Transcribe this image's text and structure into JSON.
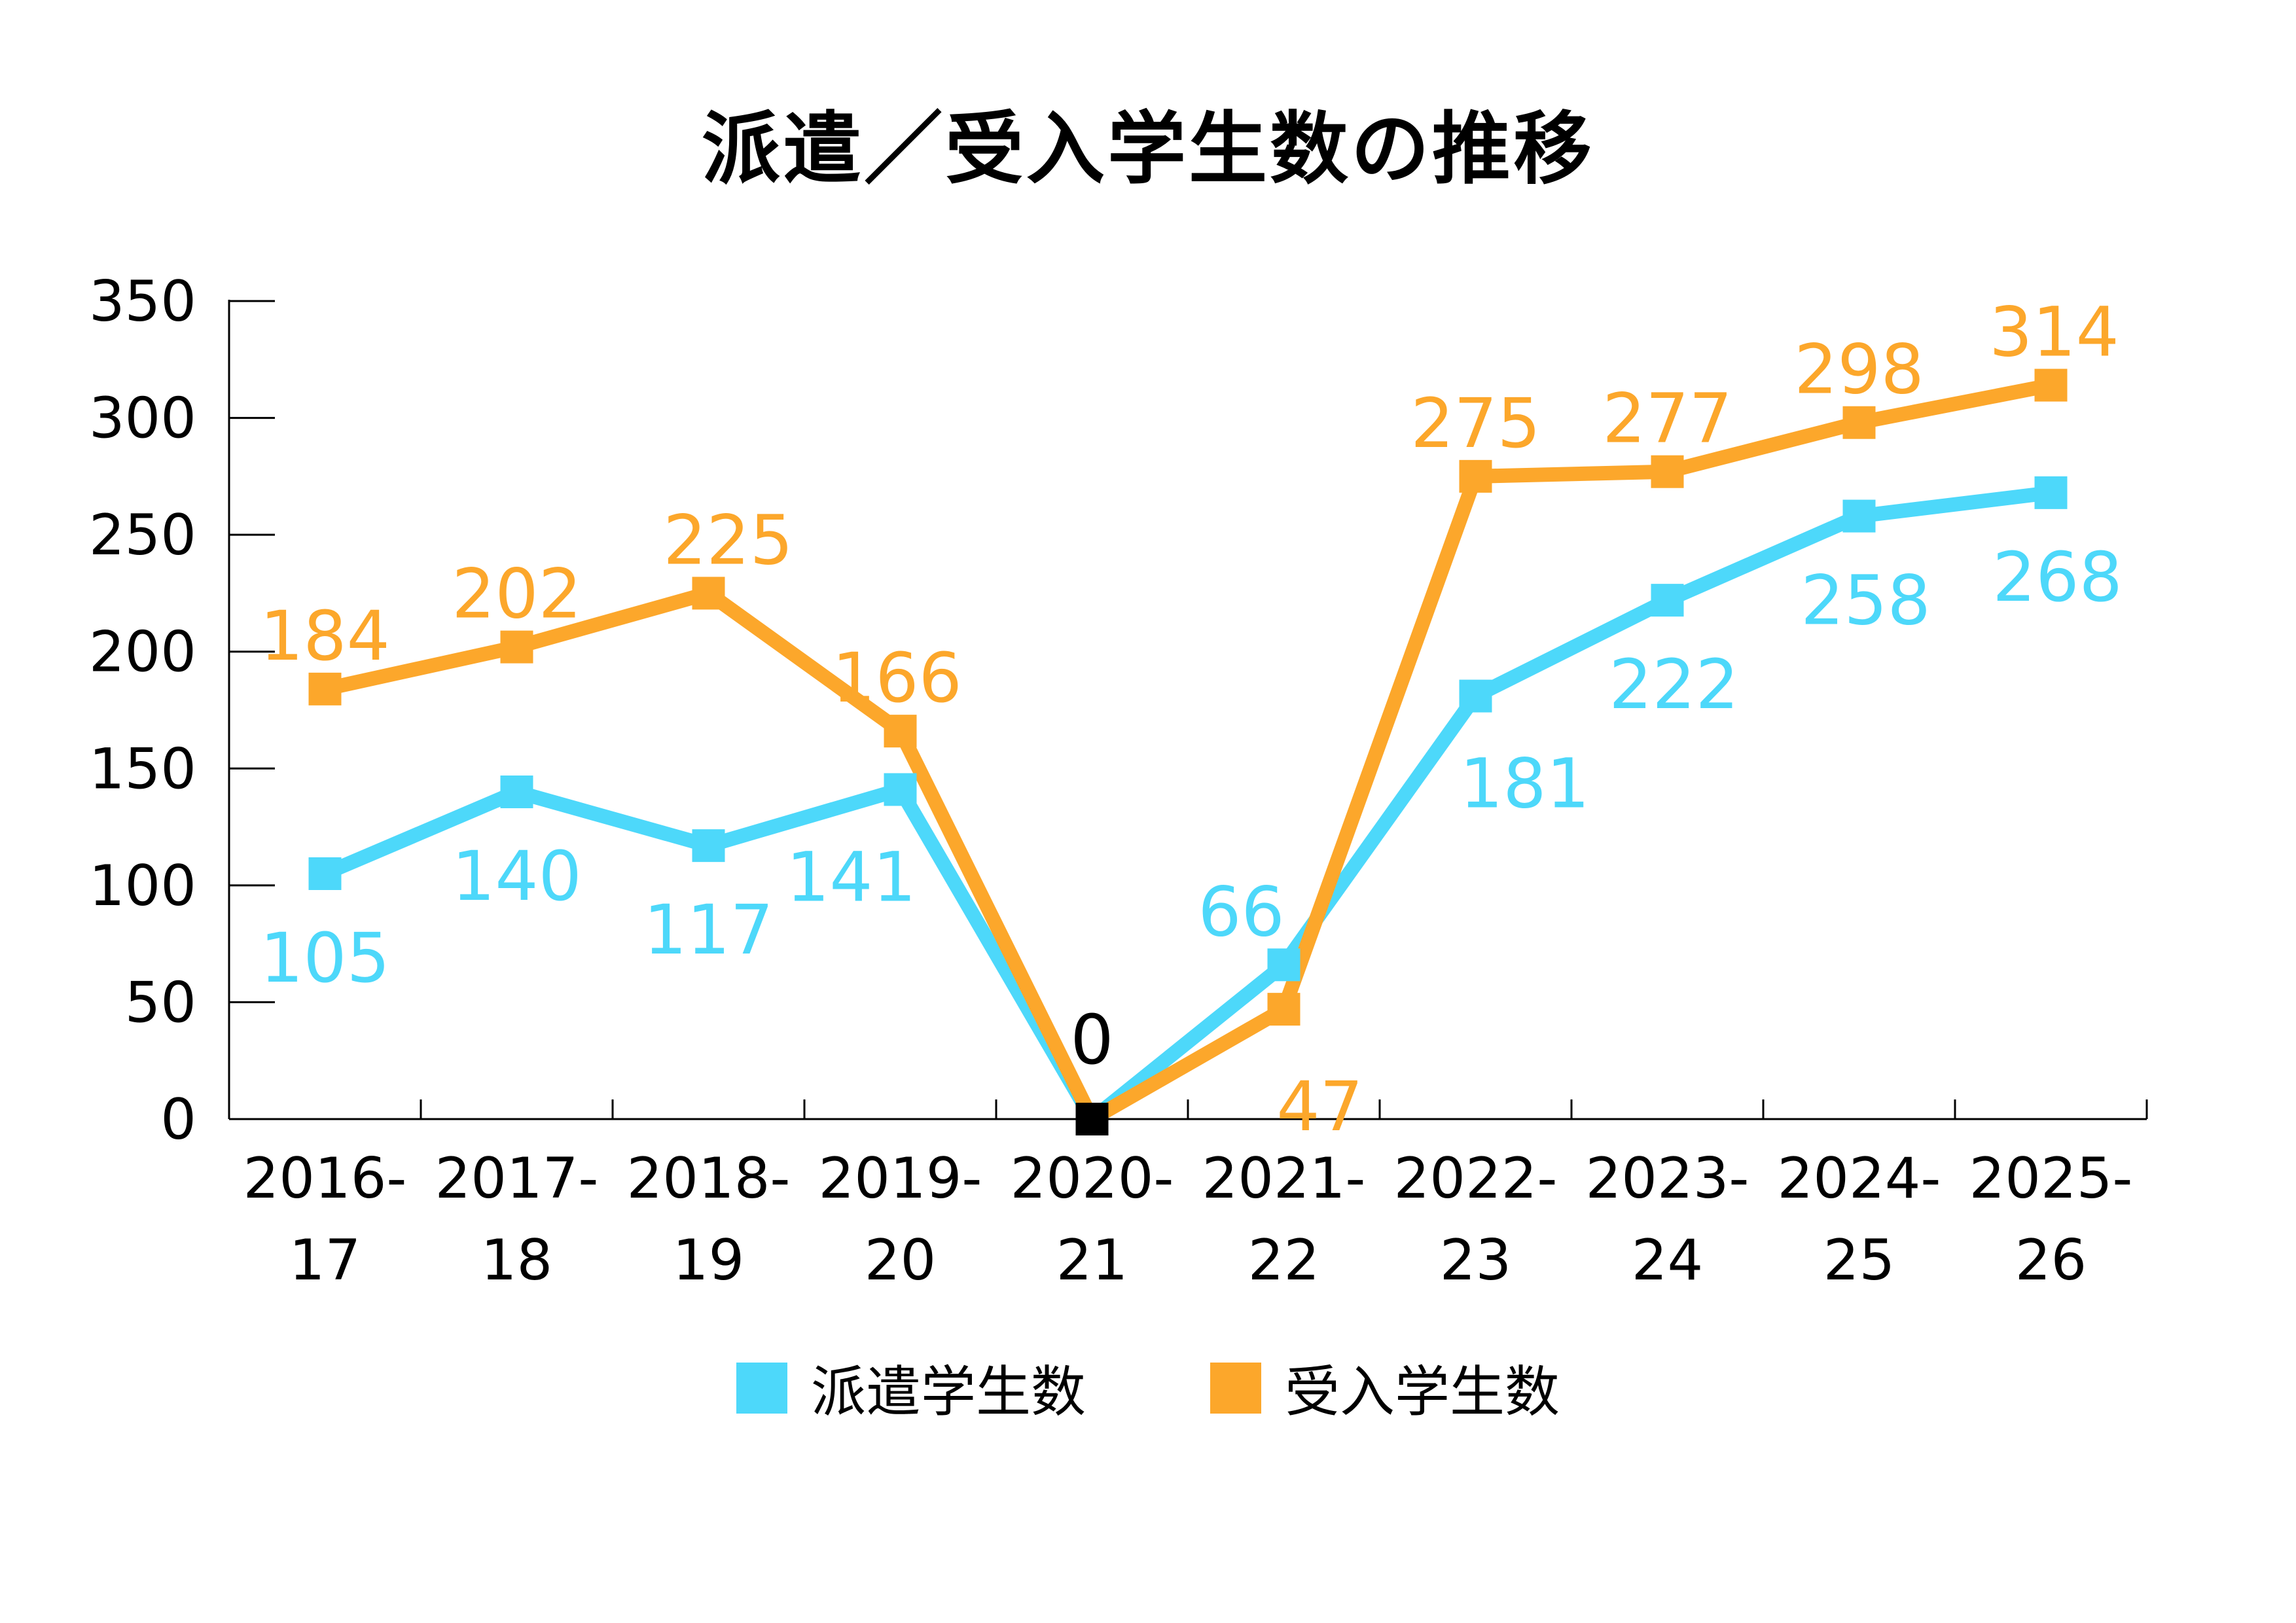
{
  "chart_data": {
    "type": "line",
    "title": "派遣／受入学生数の推移",
    "categories": [
      [
        "2016-",
        "17"
      ],
      [
        "2017-",
        "18"
      ],
      [
        "2018-",
        "19"
      ],
      [
        "2019-",
        "20"
      ],
      [
        "2020-",
        "21"
      ],
      [
        "2021-",
        "22"
      ],
      [
        "2022-",
        "23"
      ],
      [
        "2023-",
        "24"
      ],
      [
        "2024-",
        "25"
      ],
      [
        "2025-",
        "26"
      ]
    ],
    "series": [
      {
        "name": "派遣学生数",
        "color": "#4dd8fa",
        "values": [
          105,
          140,
          117,
          141,
          0,
          66,
          181,
          222,
          258,
          268
        ]
      },
      {
        "name": "受入学生数",
        "color": "#fca72b",
        "values": [
          184,
          202,
          225,
          166,
          0,
          47,
          275,
          277,
          298,
          314
        ]
      }
    ],
    "shared_zero_label": "0",
    "shared_zero_color": "#000000",
    "ylim": [
      0,
      350
    ],
    "yticks": [
      0,
      50,
      100,
      150,
      200,
      250,
      300,
      350
    ],
    "xlabel": "",
    "ylabel": "",
    "grid": false,
    "legend_position": "bottom"
  }
}
